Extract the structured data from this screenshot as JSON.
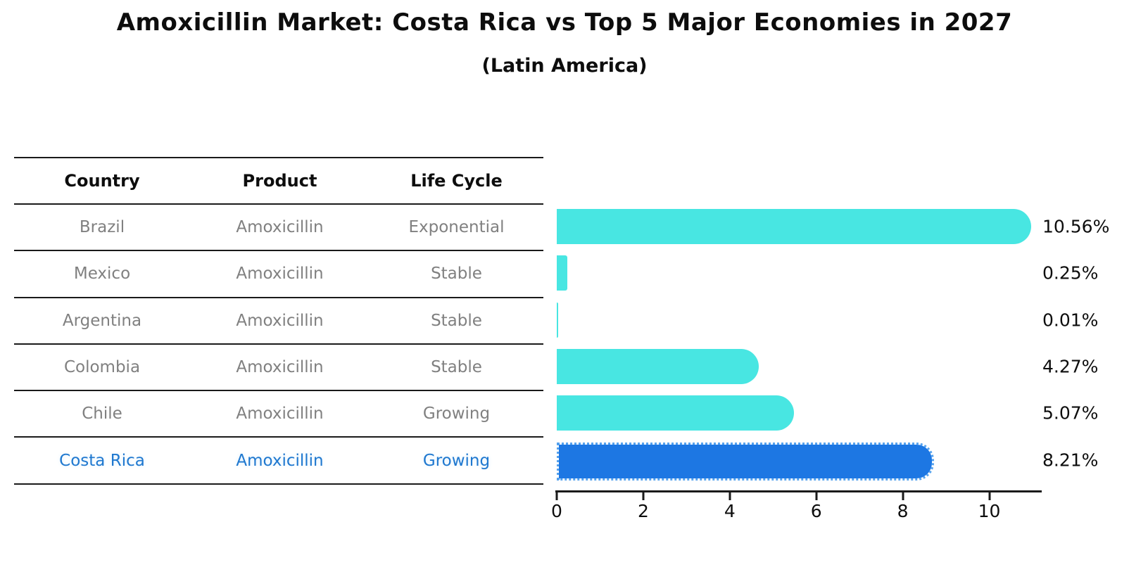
{
  "title": "Amoxicillin Market: Costa Rica vs Top 5 Major Economies in 2027",
  "subtitle": "(Latin America)",
  "table": {
    "headers": [
      "Country",
      "Product",
      "Life Cycle"
    ],
    "rows": [
      {
        "country": "Brazil",
        "product": "Amoxicillin",
        "life_cycle": "Exponential",
        "highlighted": false
      },
      {
        "country": "Mexico",
        "product": "Amoxicillin",
        "life_cycle": "Stable",
        "highlighted": false
      },
      {
        "country": "Argentina",
        "product": "Amoxicillin",
        "life_cycle": "Stable",
        "highlighted": false
      },
      {
        "country": "Colombia",
        "product": "Amoxicillin",
        "life_cycle": "Stable",
        "highlighted": false
      },
      {
        "country": "Chile",
        "product": "Amoxicillin",
        "life_cycle": "Growing",
        "highlighted": false
      },
      {
        "country": "Costa Rica",
        "product": "Amoxicillin",
        "life_cycle": "Growing",
        "highlighted": true
      }
    ]
  },
  "chart_data": {
    "type": "bar",
    "orientation": "horizontal",
    "categories": [
      "Brazil",
      "Mexico",
      "Argentina",
      "Colombia",
      "Chile",
      "Costa Rica"
    ],
    "values": [
      10.56,
      0.25,
      0.01,
      4.27,
      5.07,
      8.21
    ],
    "value_labels": [
      "10.56%",
      "0.25%",
      "0.01%",
      "4.27%",
      "5.07%",
      "8.21%"
    ],
    "x_ticks": [
      0,
      2,
      4,
      6,
      8,
      10
    ],
    "xlim": [
      0,
      11.2
    ],
    "grid": false,
    "legend": "none",
    "highlight_index": 5,
    "bar_color": "#48e6e2",
    "highlight_color": "#1d77e3",
    "highlight_border_color": "#55a2ee",
    "axis_color": "#1a1a1a",
    "label_color": "#0d0d0d"
  }
}
